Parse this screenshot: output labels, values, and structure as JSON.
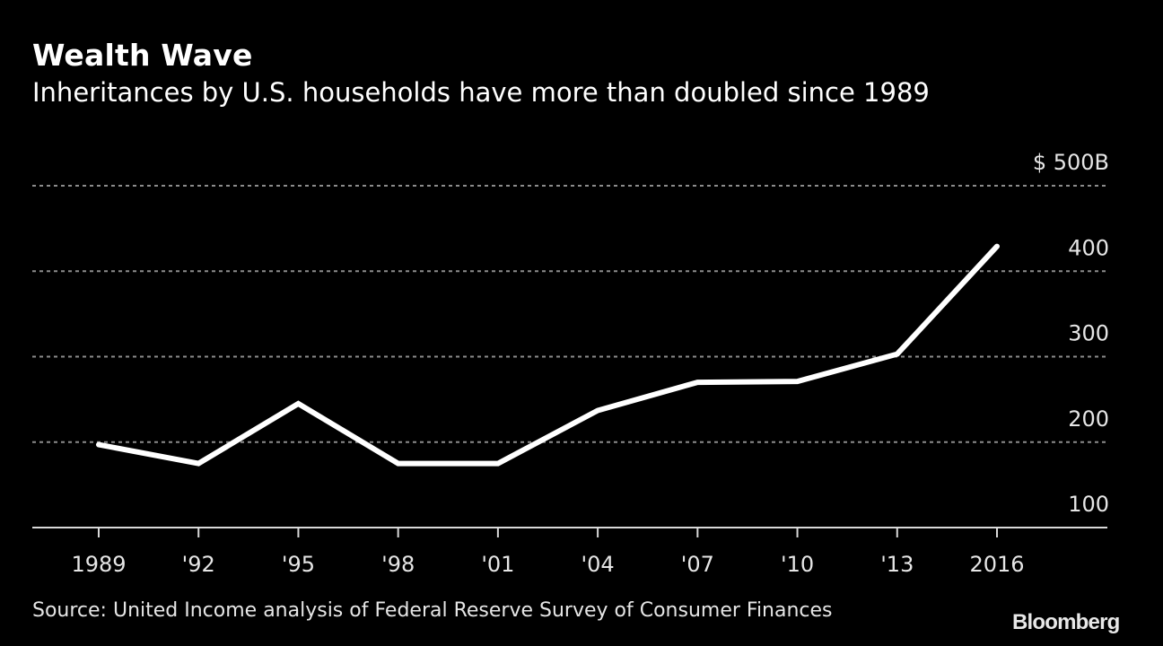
{
  "header": {
    "title": "Wealth Wave",
    "subtitle": "Inheritances by U.S. households have more than doubled since 1989"
  },
  "footer": {
    "source": "Source: United Income analysis of Federal Reserve Survey of Consumer Finances",
    "logo": "Bloomberg"
  },
  "colors": {
    "background": "#000000",
    "line": "#ffffff",
    "grid": "#8c8c8c",
    "axis": "#d9d9d9",
    "text": "#e6e6e6"
  },
  "chart_data": {
    "type": "line",
    "title": "Wealth Wave",
    "subtitle": "Inheritances by U.S. households have more than doubled since 1989",
    "xlabel": "",
    "ylabel": "",
    "x": [
      1989,
      1992,
      1995,
      1998,
      2001,
      2004,
      2007,
      2010,
      2013,
      2016
    ],
    "x_tick_labels": [
      "1989",
      "'92",
      "'95",
      "'98",
      "'01",
      "'04",
      "'07",
      "'10",
      "'13",
      "2016"
    ],
    "series": [
      {
        "name": "Inheritances ($B)",
        "values": [
          197,
          175,
          245,
          175,
          175,
          237,
          270,
          271,
          303,
          429
        ]
      }
    ],
    "y_ticks": [
      100,
      200,
      300,
      400,
      500
    ],
    "y_tick_labels": [
      "100",
      "200",
      "300",
      "400",
      "$ 500B"
    ],
    "ylim": [
      100,
      500
    ],
    "xlim": [
      1989,
      2016
    ],
    "grid": true,
    "grid_style": "dotted",
    "y_axis_side": "right",
    "legend": "none"
  }
}
